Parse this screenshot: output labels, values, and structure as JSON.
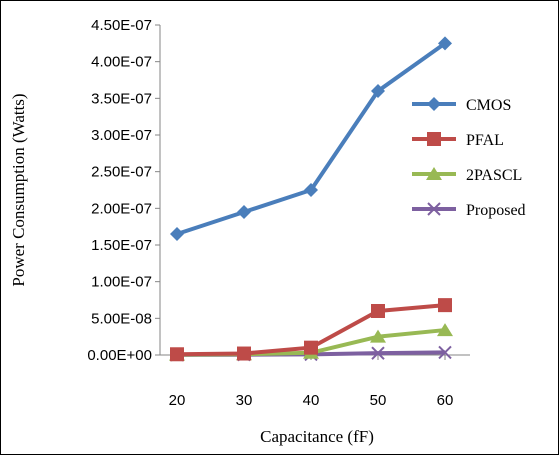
{
  "chart_data": {
    "type": "line",
    "title": "",
    "xlabel": "Capacitance (fF)",
    "ylabel": "Power Consumption (Watts)",
    "categories": [
      "20",
      "30",
      "40",
      "50",
      "60"
    ],
    "ylim": [
      0,
      4.5e-07
    ],
    "yticks": [
      {
        "value": 0,
        "label": "0.00E+00"
      },
      {
        "value": 5e-08,
        "label": "5.00E-08"
      },
      {
        "value": 1e-07,
        "label": "1.00E-07"
      },
      {
        "value": 1.5e-07,
        "label": "1.50E-07"
      },
      {
        "value": 2e-07,
        "label": "2.00E-07"
      },
      {
        "value": 2.5e-07,
        "label": "2.50E-07"
      },
      {
        "value": 3e-07,
        "label": "3.00E-07"
      },
      {
        "value": 3.5e-07,
        "label": "3.50E-07"
      },
      {
        "value": 4e-07,
        "label": "4.00E-07"
      },
      {
        "value": 4.5e-07,
        "label": "4.50E-07"
      }
    ],
    "grid": false,
    "legend_position": "right",
    "series": [
      {
        "name": "CMOS",
        "color": "#4a7ebb",
        "marker": "diamond",
        "values": [
          1.65e-07,
          1.95e-07,
          2.25e-07,
          3.6e-07,
          4.25e-07
        ]
      },
      {
        "name": "PFAL",
        "color": "#be4b48",
        "marker": "square",
        "values": [
          1e-09,
          2e-09,
          1e-08,
          6e-08,
          6.8e-08
        ]
      },
      {
        "name": "2PASCL",
        "color": "#98b954",
        "marker": "triangle",
        "values": [
          5e-10,
          1e-09,
          3e-09,
          2.5e-08,
          3.4e-08
        ]
      },
      {
        "name": "Proposed",
        "color": "#7d60a0",
        "marker": "x",
        "values": [
          2e-10,
          4e-10,
          8e-10,
          2.5e-09,
          3.5e-09
        ]
      }
    ]
  }
}
